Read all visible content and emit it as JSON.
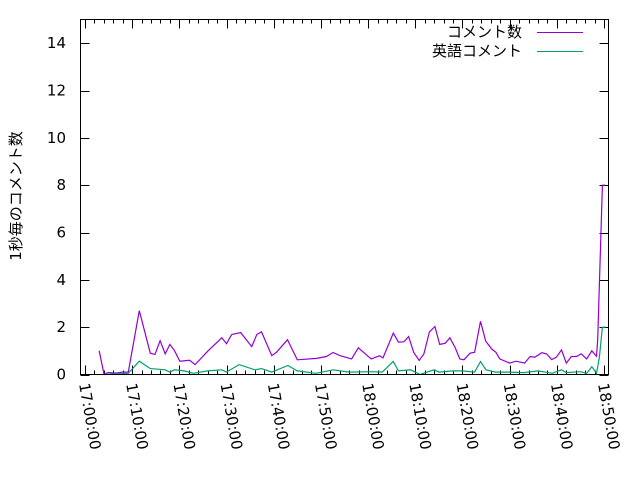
{
  "chart_data": {
    "type": "line",
    "title": "",
    "xlabel": "",
    "ylabel": "1秒毎のコメント数",
    "xlim": [
      "17:00:00",
      "18:50:00"
    ],
    "ylim": [
      0,
      15
    ],
    "x_ticks": [
      "17:00:00",
      "17:10:00",
      "17:20:00",
      "17:30:00",
      "17:40:00",
      "17:50:00",
      "18:00:00",
      "18:10:00",
      "18:20:00",
      "18:30:00",
      "18:40:00",
      "18:50:00"
    ],
    "y_ticks": [
      0,
      2,
      4,
      6,
      8,
      10,
      12,
      14
    ],
    "grid": false,
    "legend_placement": "top-right",
    "series": [
      {
        "name": "コメント数",
        "color": "#9400d3",
        "points": [
          [
            "17:03:00",
            1.0
          ],
          [
            "17:04:00",
            0.03
          ],
          [
            "17:05:00",
            0.08
          ],
          [
            "17:06:40",
            0.06
          ],
          [
            "17:07:50",
            0.1
          ],
          [
            "17:09:10",
            0.1
          ],
          [
            "17:11:30",
            2.7
          ],
          [
            "17:13:50",
            0.9
          ],
          [
            "17:14:50",
            0.85
          ],
          [
            "17:15:55",
            1.43
          ],
          [
            "17:17:00",
            0.87
          ],
          [
            "17:18:00",
            1.27
          ],
          [
            "17:19:00",
            1.0
          ],
          [
            "17:20:05",
            0.56
          ],
          [
            "17:22:10",
            0.6
          ],
          [
            "17:23:20",
            0.42
          ],
          [
            "17:26:05",
            1.0
          ],
          [
            "17:29:00",
            1.55
          ],
          [
            "17:30:00",
            1.3
          ],
          [
            "17:31:05",
            1.69
          ],
          [
            "17:33:00",
            1.77
          ],
          [
            "17:35:20",
            1.18
          ],
          [
            "17:36:25",
            1.69
          ],
          [
            "17:37:25",
            1.8
          ],
          [
            "17:39:35",
            0.8
          ],
          [
            "17:40:35",
            0.94
          ],
          [
            "17:42:55",
            1.47
          ],
          [
            "17:45:00",
            0.62
          ],
          [
            "17:49:05",
            0.68
          ],
          [
            "17:51:10",
            0.76
          ],
          [
            "17:52:35",
            0.93
          ],
          [
            "17:54:00",
            0.8
          ],
          [
            "17:56:30",
            0.66
          ],
          [
            "17:57:55",
            1.13
          ],
          [
            "18:00:40",
            0.66
          ],
          [
            "18:02:25",
            0.79
          ],
          [
            "18:03:10",
            0.7
          ],
          [
            "18:05:20",
            1.75
          ],
          [
            "18:06:25",
            1.37
          ],
          [
            "18:07:35",
            1.38
          ],
          [
            "18:08:35",
            1.6
          ],
          [
            "18:09:40",
            0.94
          ],
          [
            "18:10:50",
            0.59
          ],
          [
            "18:11:50",
            0.87
          ],
          [
            "18:13:00",
            1.8
          ],
          [
            "18:14:10",
            2.03
          ],
          [
            "18:15:10",
            1.27
          ],
          [
            "18:16:20",
            1.32
          ],
          [
            "18:17:20",
            1.55
          ],
          [
            "18:18:25",
            1.15
          ],
          [
            "18:19:25",
            0.66
          ],
          [
            "18:20:20",
            0.62
          ],
          [
            "18:21:35",
            0.9
          ],
          [
            "18:22:35",
            0.94
          ],
          [
            "18:23:50",
            2.25
          ],
          [
            "18:24:55",
            1.41
          ],
          [
            "18:26:10",
            1.08
          ],
          [
            "18:27:05",
            0.94
          ],
          [
            "18:27:55",
            0.66
          ],
          [
            "18:30:00",
            0.48
          ],
          [
            "18:31:20",
            0.56
          ],
          [
            "18:33:10",
            0.48
          ],
          [
            "18:34:20",
            0.76
          ],
          [
            "18:35:20",
            0.73
          ],
          [
            "18:36:50",
            0.92
          ],
          [
            "18:37:50",
            0.87
          ],
          [
            "18:38:55",
            0.63
          ],
          [
            "18:39:55",
            0.73
          ],
          [
            "18:41:00",
            1.04
          ],
          [
            "18:42:00",
            0.48
          ],
          [
            "18:43:05",
            0.76
          ],
          [
            "18:44:10",
            0.76
          ],
          [
            "18:45:10",
            0.87
          ],
          [
            "18:46:20",
            0.66
          ],
          [
            "18:47:25",
            1.0
          ],
          [
            "18:48:25",
            0.77
          ],
          [
            "18:48:40",
            1.47
          ],
          [
            "18:49:40",
            8.0
          ],
          [
            "18:50:20",
            8.0
          ]
        ]
      },
      {
        "name": "英語コメント",
        "color": "#009e73",
        "points": [
          [
            "17:04:00",
            0.0
          ],
          [
            "17:09:10",
            0.05
          ],
          [
            "17:11:30",
            0.56
          ],
          [
            "17:13:50",
            0.25
          ],
          [
            "17:17:00",
            0.2
          ],
          [
            "17:18:00",
            0.1
          ],
          [
            "17:19:00",
            0.2
          ],
          [
            "17:21:00",
            0.15
          ],
          [
            "17:23:00",
            0.05
          ],
          [
            "17:26:00",
            0.15
          ],
          [
            "17:29:00",
            0.2
          ],
          [
            "17:30:00",
            0.1
          ],
          [
            "17:32:40",
            0.42
          ],
          [
            "17:36:00",
            0.2
          ],
          [
            "17:37:25",
            0.25
          ],
          [
            "17:39:35",
            0.1
          ],
          [
            "17:43:00",
            0.38
          ],
          [
            "17:45:00",
            0.15
          ],
          [
            "17:49:00",
            0.05
          ],
          [
            "17:52:35",
            0.2
          ],
          [
            "17:56:00",
            0.1
          ],
          [
            "18:00:40",
            0.12
          ],
          [
            "18:03:00",
            0.1
          ],
          [
            "18:05:20",
            0.55
          ],
          [
            "18:06:25",
            0.15
          ],
          [
            "18:09:00",
            0.2
          ],
          [
            "18:11:00",
            0.0
          ],
          [
            "18:14:00",
            0.2
          ],
          [
            "18:15:00",
            0.1
          ],
          [
            "18:18:00",
            0.15
          ],
          [
            "18:20:00",
            0.15
          ],
          [
            "18:22:35",
            0.1
          ],
          [
            "18:23:50",
            0.55
          ],
          [
            "18:25:00",
            0.2
          ],
          [
            "18:27:00",
            0.1
          ],
          [
            "18:30:00",
            0.1
          ],
          [
            "18:33:00",
            0.08
          ],
          [
            "18:36:00",
            0.15
          ],
          [
            "18:39:00",
            0.05
          ],
          [
            "18:41:00",
            0.2
          ],
          [
            "18:42:00",
            0.08
          ],
          [
            "18:45:00",
            0.12
          ],
          [
            "18:46:20",
            0.05
          ],
          [
            "18:47:25",
            0.33
          ],
          [
            "18:48:25",
            0.05
          ],
          [
            "18:49:00",
            0.7
          ],
          [
            "18:49:40",
            2.0
          ],
          [
            "18:50:20",
            2.0
          ]
        ]
      }
    ]
  }
}
